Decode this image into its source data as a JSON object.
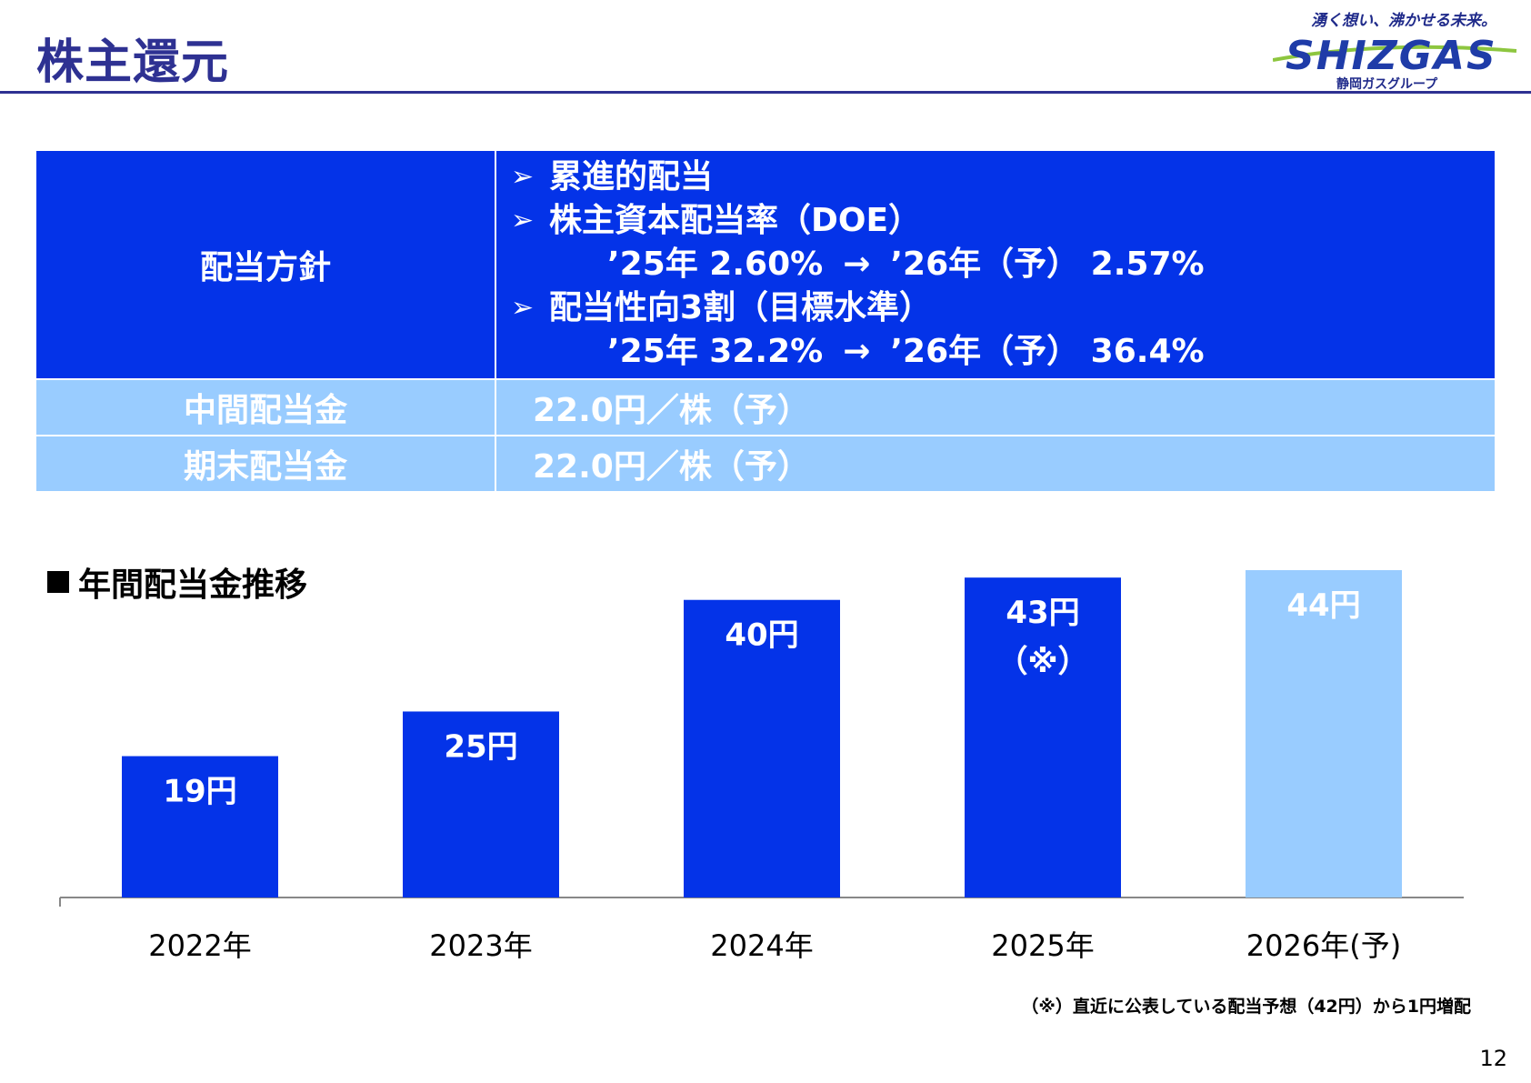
{
  "header": {
    "title": "株主還元",
    "accent_color": "#2e3192"
  },
  "logo": {
    "tagline": "湧く想い、沸かせる未来。",
    "wordmark": "SHIZGAS",
    "subtitle": "静岡ガスグループ"
  },
  "policy": {
    "label": "配当方針",
    "bullets": [
      {
        "text": "累進的配当",
        "detail": null
      },
      {
        "text": "株主資本配当率（DOE）",
        "detail": {
          "from": "’25年 2.60%",
          "arrow": "→",
          "to": "’26年（予） 2.57%"
        }
      },
      {
        "text": "配当性向3割（目標水準）",
        "detail": {
          "from": "’25年 32.2%",
          "arrow": "→",
          "to": "’26年（予） 36.4%"
        }
      }
    ],
    "bullet_icon": "triangle-arrow-icon",
    "dark_color": "#0433e8",
    "light_color": "#99ccff"
  },
  "dividends": [
    {
      "label": "中間配当金",
      "value": "22.0円／株（予）"
    },
    {
      "label": "期末配当金",
      "value": "22.0円／株（予）"
    }
  ],
  "chart_section_title": "年間配当金推移",
  "chart_data": {
    "type": "bar",
    "categories": [
      "2022年",
      "2023年",
      "2024年",
      "2025年",
      "2026年(予)"
    ],
    "values": [
      19,
      25,
      40,
      43,
      44
    ],
    "data_labels": [
      "19円",
      "25円",
      "40円",
      "43円",
      "44円"
    ],
    "annotations": [
      "",
      "",
      "",
      "（※）",
      ""
    ],
    "forecast": [
      false,
      false,
      false,
      false,
      true
    ],
    "colors": {
      "actual": "#0433e8",
      "forecast": "#99ccff"
    },
    "ylim": [
      0,
      44
    ]
  },
  "footnote": "（※）直近に公表している配当予想（42円）から1円増配",
  "page_number": "12"
}
